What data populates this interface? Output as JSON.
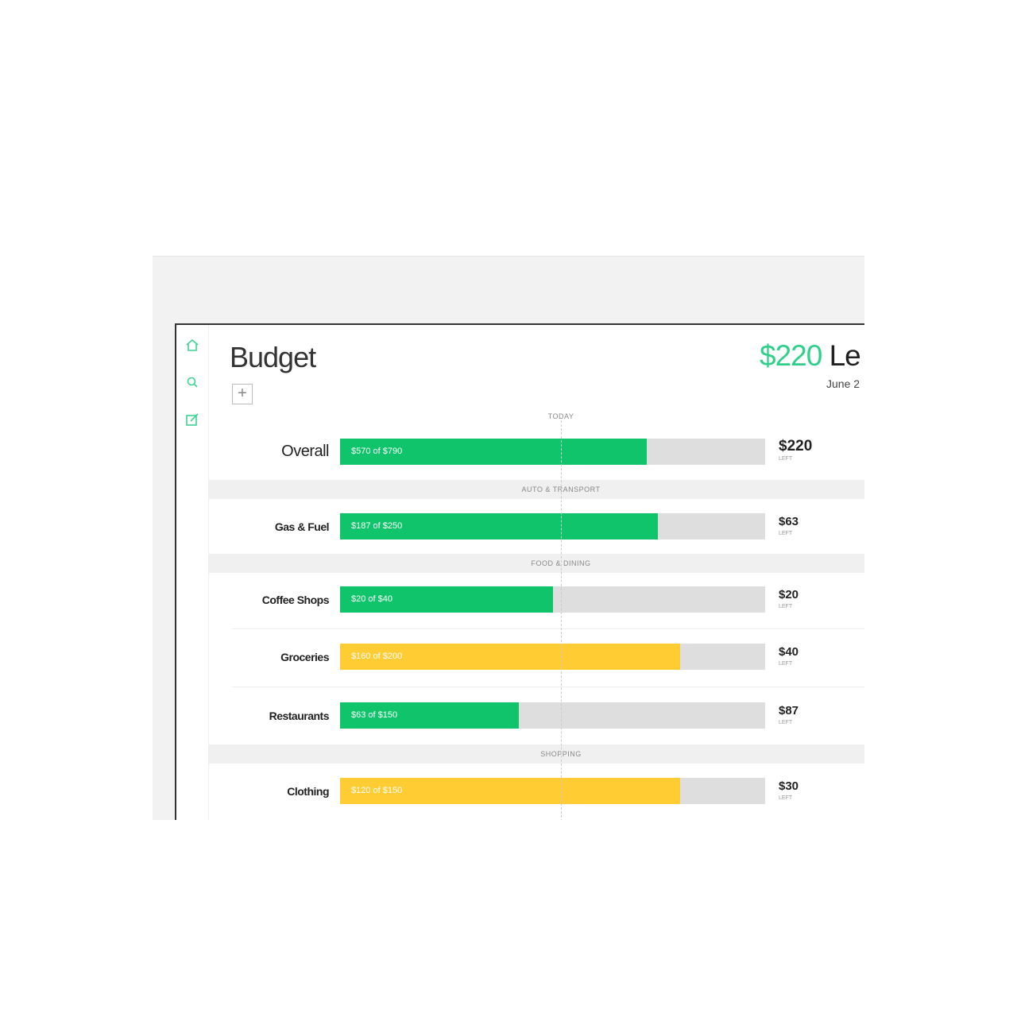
{
  "header": {
    "title": "Budget",
    "amount": "$220",
    "amount_suffix": "Le",
    "date": "June 2"
  },
  "today_label": "TODAY",
  "overall": {
    "label": "Overall",
    "bar_label": "$570 of $790",
    "spent": 570,
    "budget": 790,
    "left": "$220",
    "left_caption": "LEFT",
    "color": "#10c46b"
  },
  "sections": [
    {
      "name": "AUTO & TRANSPORT",
      "rows": [
        {
          "label": "Gas & Fuel",
          "bar_label": "$187 of $250",
          "spent": 187,
          "budget": 250,
          "left": "$63",
          "left_caption": "LEFT",
          "color": "#10c46b"
        }
      ]
    },
    {
      "name": "FOOD & DINING",
      "rows": [
        {
          "label": "Coffee Shops",
          "bar_label": "$20 of $40",
          "spent": 20,
          "budget": 40,
          "left": "$20",
          "left_caption": "LEFT",
          "color": "#10c46b"
        },
        {
          "label": "Groceries",
          "bar_label": "$160 of $200",
          "spent": 160,
          "budget": 200,
          "left": "$40",
          "left_caption": "LEFT",
          "color": "#ffcc33"
        },
        {
          "label": "Restaurants",
          "bar_label": "$63 of $150",
          "spent": 63,
          "budget": 150,
          "left": "$87",
          "left_caption": "LEFT",
          "color": "#10c46b"
        }
      ]
    },
    {
      "name": "SHOPPING",
      "rows": [
        {
          "label": "Clothing",
          "bar_label": "$120 of $150",
          "spent": 120,
          "budget": 150,
          "left": "$30",
          "left_caption": "LEFT",
          "color": "#ffcc33"
        }
      ]
    }
  ]
}
